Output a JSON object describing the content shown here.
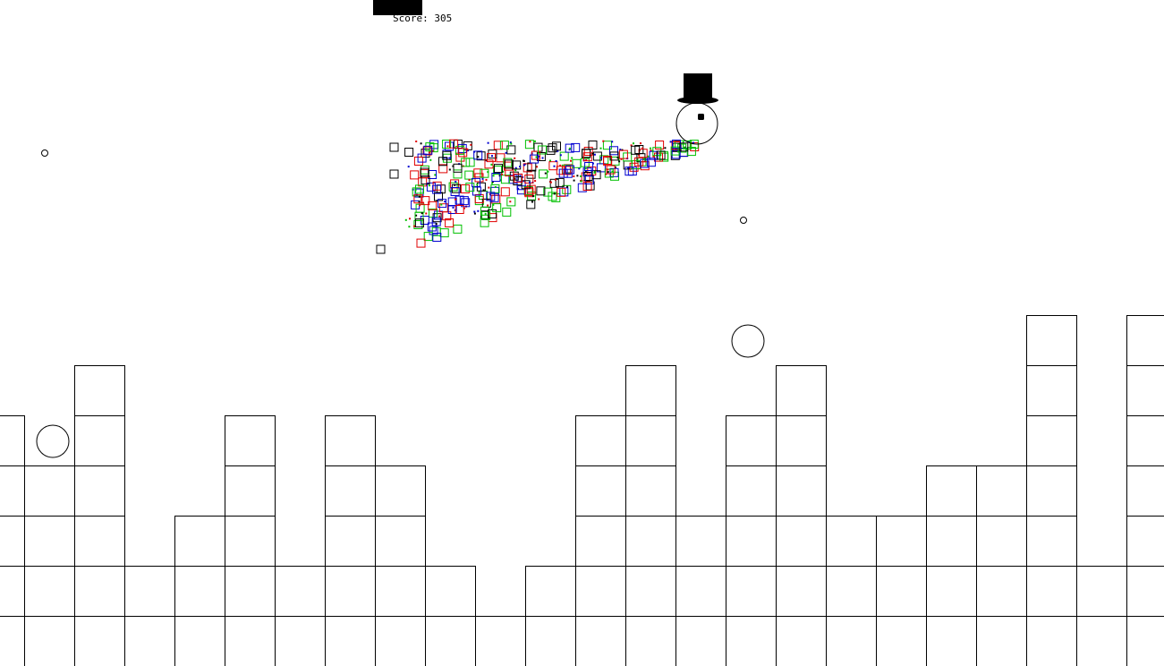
{
  "hud": {
    "score_label": "Score:",
    "score_value": "305"
  },
  "colors": {
    "background": "#ffffff",
    "outline": "#000000",
    "particle_red": "#e00000",
    "particle_green": "#00c000",
    "particle_blue": "#0000d0",
    "particle_black": "#000000"
  },
  "terrain": {
    "tile_size": 56,
    "column_heights": [
      5,
      4,
      6,
      2,
      3,
      5,
      2,
      5,
      4,
      2,
      1,
      2,
      5,
      6,
      3,
      5,
      6,
      3,
      3,
      4,
      4,
      7,
      2,
      7,
      5
    ]
  },
  "entities": {
    "player": "snowman-with-top-hat",
    "enemies": [
      "ball",
      "ball"
    ],
    "pellets": [
      "pellet",
      "pellet"
    ]
  }
}
